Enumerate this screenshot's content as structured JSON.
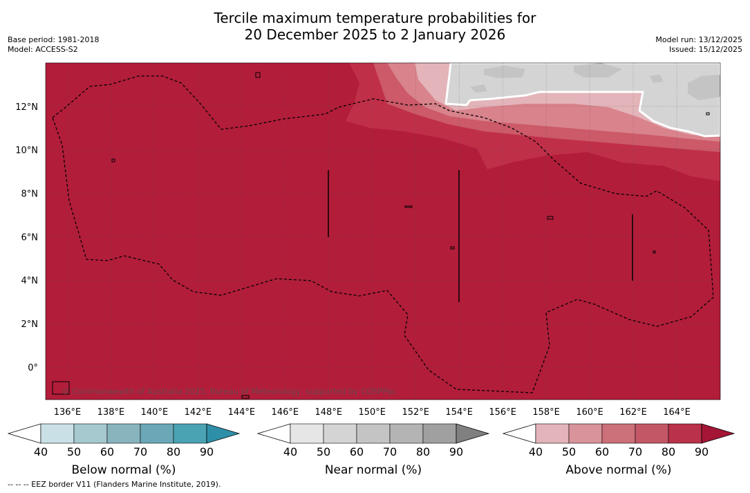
{
  "title": {
    "line1": "Tercile maximum temperature probabilities for",
    "line2": "20 December 2025 to 2 January 2026"
  },
  "meta_left": {
    "base_period": "Base period: 1981-2018",
    "model": "Model: ACCESS-S2"
  },
  "meta_right": {
    "model_run": "Model run: 13/12/2025",
    "issued": "Issued: 15/12/2025"
  },
  "map": {
    "lon_range": [
      135,
      166
    ],
    "lat_range": [
      -1.5,
      14
    ],
    "x_ticks": [
      "136°E",
      "138°E",
      "140°E",
      "142°E",
      "144°E",
      "146°E",
      "148°E",
      "150°E",
      "152°E",
      "154°E",
      "156°E",
      "158°E",
      "160°E",
      "162°E",
      "164°E"
    ],
    "y_ticks": [
      "12°N",
      "10°N",
      "8°N",
      "6°N",
      "4°N",
      "2°N",
      "0°"
    ],
    "credit": "© Commonwealth of Australia 2025, Bureau of Meteorology, supported by COSPPac",
    "colors": {
      "above_90": "#b21d3a",
      "above_80": "#c02f48",
      "above_70": "#cc5a68",
      "above_60": "#d9838c",
      "above_50": "#e3b4b9",
      "near_50": "#d4d4d4",
      "near_60": "#c4c4c4",
      "eez": "#000000",
      "grid": "#555555"
    }
  },
  "colorbars": [
    {
      "label": "Below normal (%)",
      "ticks": [
        "40",
        "50",
        "60",
        "70",
        "80",
        "90"
      ],
      "colors": [
        "#ffffff",
        "#c8e0e6",
        "#a6c8cf",
        "#88b4be",
        "#6aa8b8",
        "#4aa3b3",
        "#2f8fa8"
      ]
    },
    {
      "label": "Near normal (%)",
      "ticks": [
        "40",
        "50",
        "60",
        "70",
        "80",
        "90"
      ],
      "colors": [
        "#ffffff",
        "#e6e6e6",
        "#d4d4d4",
        "#c4c4c4",
        "#b4b4b4",
        "#a0a0a0",
        "#808080"
      ]
    },
    {
      "label": "Above normal (%)",
      "ticks": [
        "40",
        "50",
        "60",
        "70",
        "80",
        "90"
      ],
      "colors": [
        "#ffffff",
        "#e3b4b9",
        "#d9939b",
        "#cc7079",
        "#c35766",
        "#b9314a",
        "#a51535"
      ]
    }
  ],
  "footer": "--  --  -- EEZ border V11 (Flanders Marine Institute, 2019)."
}
